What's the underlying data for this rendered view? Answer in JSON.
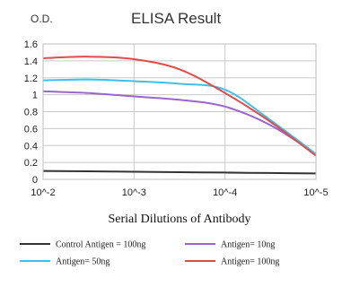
{
  "chart_data": {
    "type": "line",
    "title": "ELISA Result",
    "ylabel": "O.D.",
    "xlabel": "Serial Dilutions of Antibody",
    "categories": [
      "10^-2",
      "10^-3",
      "10^-4",
      "10^-5"
    ],
    "y_ticks": [
      "0",
      "0.2",
      "0.4",
      "0.6",
      "0.8",
      "1",
      "1.2",
      "1.4",
      "1.6"
    ],
    "ylim": [
      0,
      1.6
    ],
    "x_scale": "log",
    "xlim_exponents": [
      -2,
      -5
    ],
    "grid": true,
    "legend_position": "bottom",
    "series": [
      {
        "name": "Control Antigen = 100ng",
        "color": "#333333",
        "points": [
          [
            -2,
            0.1
          ],
          [
            -2.5,
            0.095
          ],
          [
            -3,
            0.09
          ],
          [
            -3.5,
            0.085
          ],
          [
            -4,
            0.08
          ],
          [
            -4.5,
            0.075
          ],
          [
            -5,
            0.07
          ]
        ]
      },
      {
        "name": "Antigen= 10ng",
        "color": "#9966cc",
        "points": [
          [
            -2,
            1.04
          ],
          [
            -2.5,
            1.02
          ],
          [
            -3,
            0.98
          ],
          [
            -3.5,
            0.94
          ],
          [
            -4,
            0.86
          ],
          [
            -4.5,
            0.64
          ],
          [
            -5,
            0.3
          ]
        ]
      },
      {
        "name": "Antigen= 50ng",
        "color": "#3fc0e8",
        "points": [
          [
            -2,
            1.17
          ],
          [
            -2.5,
            1.18
          ],
          [
            -3,
            1.16
          ],
          [
            -3.5,
            1.13
          ],
          [
            -4,
            1.06
          ],
          [
            -4.5,
            0.7
          ],
          [
            -5,
            0.3
          ]
        ]
      },
      {
        "name": "Antigen= 100ng",
        "color": "#e04a4a",
        "points": [
          [
            -2,
            1.43
          ],
          [
            -2.5,
            1.45
          ],
          [
            -3,
            1.42
          ],
          [
            -3.5,
            1.3
          ],
          [
            -4,
            1.02
          ],
          [
            -4.5,
            0.68
          ],
          [
            -5,
            0.28
          ]
        ]
      }
    ]
  }
}
